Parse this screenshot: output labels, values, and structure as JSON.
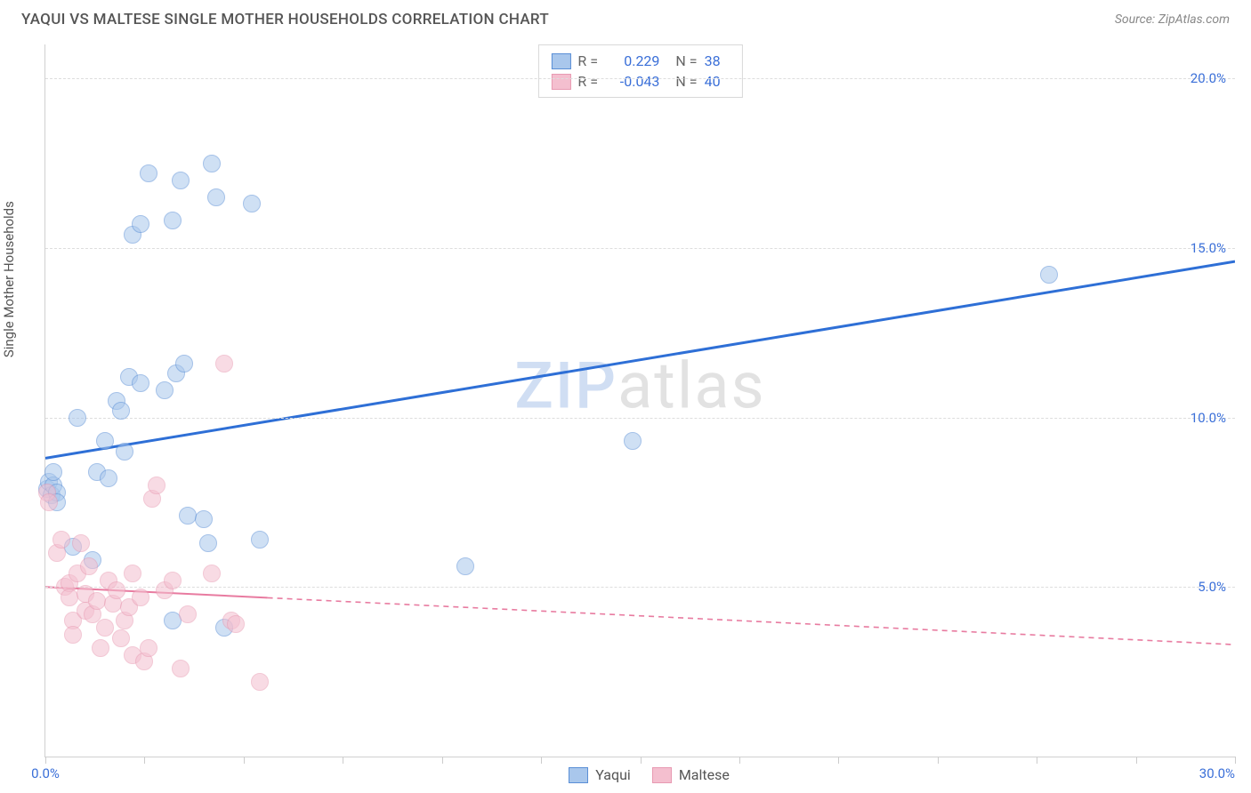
{
  "title": "YAQUI VS MALTESE SINGLE MOTHER HOUSEHOLDS CORRELATION CHART",
  "source": "Source: ZipAtlas.com",
  "ylabel": "Single Mother Households",
  "watermark_a": "ZIP",
  "watermark_b": "atlas",
  "chart": {
    "type": "scatter",
    "background_color": "#ffffff",
    "grid_color": "#dddddd",
    "axis_color": "#d0d0d0",
    "label_color": "#555555",
    "tick_label_color": "#3a6fd8",
    "title_fontsize": 17,
    "label_fontsize": 15,
    "tick_fontsize": 15,
    "xlim": [
      0,
      30
    ],
    "ylim": [
      0,
      21
    ],
    "xticks": [
      0,
      2.5,
      5,
      7.5,
      10,
      12.5,
      15,
      17.5,
      20,
      22.5,
      25,
      27.5,
      30
    ],
    "xtick_labels": {
      "0": "0.0%",
      "30": "30.0%"
    },
    "yticks": [
      5,
      10,
      15,
      20
    ],
    "ytick_labels": {
      "5": "5.0%",
      "10": "10.0%",
      "15": "15.0%",
      "20": "20.0%"
    },
    "marker_radius": 10,
    "marker_opacity": 0.55,
    "series": [
      {
        "name": "Yaqui",
        "fill": "#a9c7ec",
        "stroke": "#5a8fd6",
        "R": "0.229",
        "N": "38",
        "trend": {
          "y_at_x0": 8.8,
          "y_at_x30": 14.6,
          "color": "#2e6fd6",
          "width": 3,
          "dash": "none",
          "x_solid_end": 30
        },
        "points": [
          [
            0.05,
            7.9
          ],
          [
            0.1,
            8.1
          ],
          [
            0.15,
            7.7
          ],
          [
            0.2,
            8.0
          ],
          [
            0.2,
            8.4
          ],
          [
            0.3,
            7.8
          ],
          [
            0.3,
            7.5
          ],
          [
            0.7,
            6.2
          ],
          [
            0.8,
            10.0
          ],
          [
            1.2,
            5.8
          ],
          [
            1.3,
            8.4
          ],
          [
            1.5,
            9.3
          ],
          [
            1.6,
            8.2
          ],
          [
            1.8,
            10.5
          ],
          [
            1.9,
            10.2
          ],
          [
            2.1,
            11.2
          ],
          [
            2.0,
            9.0
          ],
          [
            2.4,
            11.0
          ],
          [
            2.2,
            15.4
          ],
          [
            2.4,
            15.7
          ],
          [
            2.6,
            17.2
          ],
          [
            3.0,
            10.8
          ],
          [
            3.2,
            15.8
          ],
          [
            3.3,
            11.3
          ],
          [
            3.4,
            17.0
          ],
          [
            3.5,
            11.6
          ],
          [
            3.2,
            4.0
          ],
          [
            3.6,
            7.1
          ],
          [
            4.2,
            17.5
          ],
          [
            4.3,
            16.5
          ],
          [
            4.0,
            7.0
          ],
          [
            4.1,
            6.3
          ],
          [
            4.5,
            3.8
          ],
          [
            5.2,
            16.3
          ],
          [
            5.4,
            6.4
          ],
          [
            10.6,
            5.6
          ],
          [
            14.8,
            9.3
          ],
          [
            25.3,
            14.2
          ]
        ]
      },
      {
        "name": "Maltese",
        "fill": "#f4bfcf",
        "stroke": "#e89ab2",
        "R": "-0.043",
        "N": "40",
        "trend": {
          "y_at_x0": 5.0,
          "y_at_x30": 3.3,
          "color": "#e87ba0",
          "width": 2,
          "dash": "6,5",
          "x_solid_end": 5.6
        },
        "points": [
          [
            0.05,
            7.8
          ],
          [
            0.1,
            7.5
          ],
          [
            0.3,
            6.0
          ],
          [
            0.4,
            6.4
          ],
          [
            0.5,
            5.0
          ],
          [
            0.6,
            5.1
          ],
          [
            0.6,
            4.7
          ],
          [
            0.7,
            4.0
          ],
          [
            0.7,
            3.6
          ],
          [
            0.8,
            5.4
          ],
          [
            0.9,
            6.3
          ],
          [
            1.0,
            4.8
          ],
          [
            1.0,
            4.3
          ],
          [
            1.1,
            5.6
          ],
          [
            1.2,
            4.2
          ],
          [
            1.3,
            4.6
          ],
          [
            1.4,
            3.2
          ],
          [
            1.5,
            3.8
          ],
          [
            1.6,
            5.2
          ],
          [
            1.7,
            4.5
          ],
          [
            1.8,
            4.9
          ],
          [
            1.9,
            3.5
          ],
          [
            2.0,
            4.0
          ],
          [
            2.1,
            4.4
          ],
          [
            2.2,
            5.4
          ],
          [
            2.2,
            3.0
          ],
          [
            2.4,
            4.7
          ],
          [
            2.5,
            2.8
          ],
          [
            2.6,
            3.2
          ],
          [
            2.7,
            7.6
          ],
          [
            2.8,
            8.0
          ],
          [
            3.0,
            4.9
          ],
          [
            3.2,
            5.2
          ],
          [
            3.4,
            2.6
          ],
          [
            3.6,
            4.2
          ],
          [
            4.2,
            5.4
          ],
          [
            4.5,
            11.6
          ],
          [
            4.7,
            4.0
          ],
          [
            4.8,
            3.9
          ],
          [
            5.4,
            2.2
          ]
        ]
      }
    ]
  },
  "legend_bottom": [
    {
      "label": "Yaqui",
      "fill": "#a9c7ec",
      "stroke": "#5a8fd6"
    },
    {
      "label": "Maltese",
      "fill": "#f4bfcf",
      "stroke": "#e89ab2"
    }
  ]
}
